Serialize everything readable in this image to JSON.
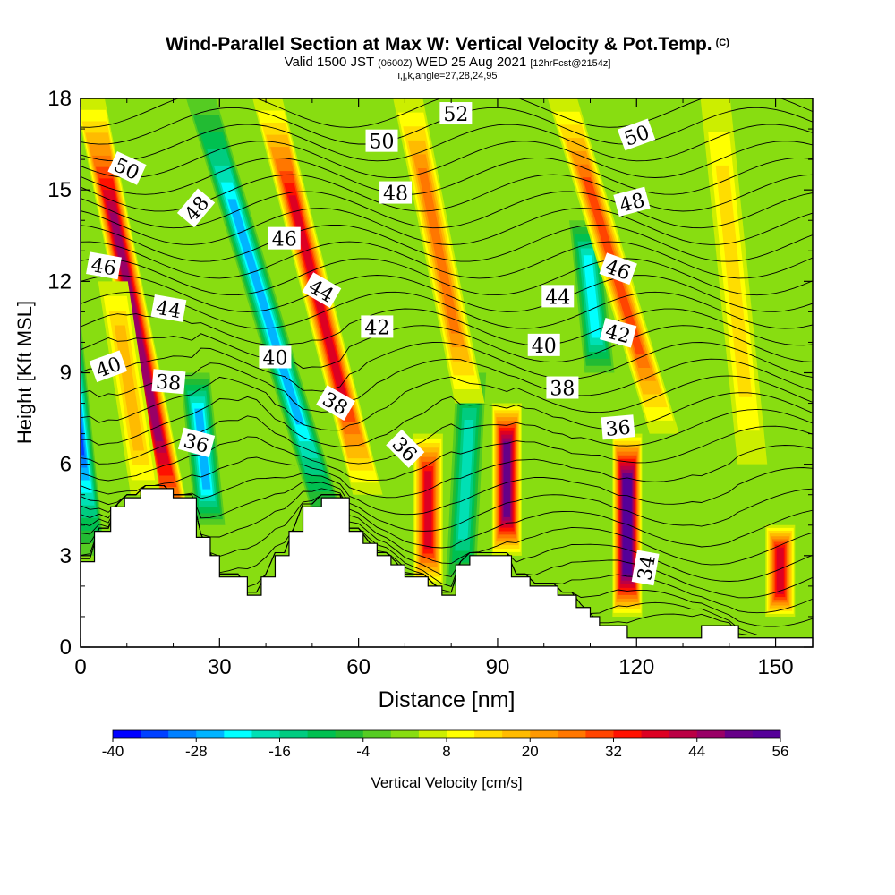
{
  "chart_data": {
    "type": "heatmap",
    "title": "Wind-Parallel Section at Max W: Vertical Velocity & Pot.Temp.",
    "title_mark": "(C)",
    "subtitle": {
      "valid": "Valid 1500 JST",
      "utc": "(0600Z)",
      "date": "WED 25 Aug 2021",
      "fcst": "[12hrFcst@2154z]"
    },
    "params_line": "i,j,k,angle=27,28,24,95",
    "xlabel": "Distance [nm]",
    "ylabel": "Height [Kft MSL]",
    "xlim": [
      0,
      158
    ],
    "ylim": [
      0,
      18
    ],
    "x_ticks": [
      "0",
      "30",
      "60",
      "90",
      "120",
      "150"
    ],
    "y_ticks": [
      "0",
      "3",
      "6",
      "9",
      "12",
      "15",
      "18"
    ],
    "colorbar": {
      "label": "Vertical Velocity [cm/s]",
      "min": -40,
      "max": 56,
      "step": 4,
      "tick_labels": [
        "-40",
        "-28",
        "-16",
        "-4",
        "8",
        "20",
        "32",
        "44",
        "56"
      ],
      "colors": [
        "#0000ff",
        "#0040ff",
        "#0080ff",
        "#00b4ff",
        "#00ffff",
        "#00e0b4",
        "#00cc80",
        "#00c050",
        "#22bb33",
        "#55cc22",
        "#88dd11",
        "#ccee00",
        "#ffff00",
        "#ffdd00",
        "#ffbb00",
        "#ff9900",
        "#ff7700",
        "#ff4400",
        "#ff1100",
        "#dd0022",
        "#bb0044",
        "#990066",
        "#660088",
        "#550099"
      ]
    },
    "velocity_features": [
      {
        "x": 2,
        "z_bottom": 3,
        "z_top": 18,
        "tilt": -1.0,
        "value": -40
      },
      {
        "x": 22,
        "z_bottom": 3,
        "z_top": 18,
        "tilt": -2.0,
        "value": 44
      },
      {
        "x": 14,
        "z_bottom": 5,
        "z_top": 12,
        "tilt": -1.5,
        "value": 16
      },
      {
        "x": 28,
        "z_bottom": 4,
        "z_top": 9,
        "tilt": -1.0,
        "value": -28
      },
      {
        "x": 54,
        "z_bottom": 4,
        "z_top": 18,
        "tilt": -3.0,
        "value": -28
      },
      {
        "x": 62,
        "z_bottom": 5,
        "z_top": 18,
        "tilt": -2.5,
        "value": 36
      },
      {
        "x": 75,
        "z_bottom": 2,
        "z_top": 7,
        "tilt": 0.0,
        "value": 36
      },
      {
        "x": 82,
        "z_bottom": 2,
        "z_top": 9,
        "tilt": 0.5,
        "value": -20
      },
      {
        "x": 92,
        "z_bottom": 3,
        "z_top": 8,
        "tilt": 0.0,
        "value": 48
      },
      {
        "x": 84,
        "z_bottom": 8,
        "z_top": 18,
        "tilt": -2.0,
        "value": 24
      },
      {
        "x": 118,
        "z_bottom": 1,
        "z_top": 7,
        "tilt": 0.0,
        "value": 56
      },
      {
        "x": 112,
        "z_bottom": 9,
        "z_top": 14,
        "tilt": -1.0,
        "value": -24
      },
      {
        "x": 126,
        "z_bottom": 7,
        "z_top": 18,
        "tilt": -3.0,
        "value": 28
      },
      {
        "x": 145,
        "z_bottom": 6,
        "z_top": 18,
        "tilt": -1.0,
        "value": 12
      },
      {
        "x": 151,
        "z_bottom": 1,
        "z_top": 4,
        "tilt": 0.0,
        "value": 36
      }
    ],
    "isentropes_K": [
      {
        "value": 34,
        "z": 4.2
      },
      {
        "value": 36,
        "z": 6.6
      },
      {
        "value": 38,
        "z": 8.2
      },
      {
        "value": 40,
        "z": 9.4
      },
      {
        "value": 42,
        "z": 10.5
      },
      {
        "value": 44,
        "z": 11.4
      },
      {
        "value": 46,
        "z": 12.8
      },
      {
        "value": 48,
        "z": 14.8
      },
      {
        "value": 50,
        "z": 16.8
      },
      {
        "value": 52,
        "z": 17.6
      }
    ],
    "contour_labels": [
      {
        "text": "50",
        "x": 10,
        "z": 15.7,
        "angle": 25
      },
      {
        "text": "48",
        "x": 25,
        "z": 14.4,
        "angle": -50
      },
      {
        "text": "46",
        "x": 5,
        "z": 12.5,
        "angle": 10
      },
      {
        "text": "44",
        "x": 19,
        "z": 11.1,
        "angle": 10
      },
      {
        "text": "40",
        "x": 6,
        "z": 9.2,
        "angle": -20
      },
      {
        "text": "38",
        "x": 19,
        "z": 8.7,
        "angle": 5
      },
      {
        "text": "36",
        "x": 25,
        "z": 6.7,
        "angle": 15
      },
      {
        "text": "46",
        "x": 44,
        "z": 13.4,
        "angle": 0
      },
      {
        "text": "40",
        "x": 42,
        "z": 9.5,
        "angle": 0
      },
      {
        "text": "44",
        "x": 52,
        "z": 11.7,
        "angle": 30
      },
      {
        "text": "38",
        "x": 55,
        "z": 8.0,
        "angle": 30
      },
      {
        "text": "50",
        "x": 65,
        "z": 16.6,
        "angle": 0
      },
      {
        "text": "48",
        "x": 68,
        "z": 14.9,
        "angle": 0
      },
      {
        "text": "42",
        "x": 64,
        "z": 10.5,
        "angle": 0
      },
      {
        "text": "36",
        "x": 70,
        "z": 6.5,
        "angle": 45
      },
      {
        "text": "52",
        "x": 81,
        "z": 17.5,
        "angle": 0
      },
      {
        "text": "44",
        "x": 103,
        "z": 11.5,
        "angle": 0
      },
      {
        "text": "40",
        "x": 100,
        "z": 9.9,
        "angle": 0
      },
      {
        "text": "38",
        "x": 104,
        "z": 8.5,
        "angle": 0
      },
      {
        "text": "50",
        "x": 120,
        "z": 16.8,
        "angle": -20
      },
      {
        "text": "48",
        "x": 119,
        "z": 14.6,
        "angle": -15
      },
      {
        "text": "46",
        "x": 116,
        "z": 12.4,
        "angle": 20
      },
      {
        "text": "42",
        "x": 116,
        "z": 10.3,
        "angle": 15
      },
      {
        "text": "36",
        "x": 116,
        "z": 7.2,
        "angle": -5
      },
      {
        "text": "34",
        "x": 122,
        "z": 2.6,
        "angle": -80
      }
    ],
    "terrain_profile_nm_kft": [
      [
        0,
        2.2
      ],
      [
        0,
        2.8
      ],
      [
        3,
        2.8
      ],
      [
        3,
        3.8
      ],
      [
        6.5,
        3.8
      ],
      [
        6.5,
        4.6
      ],
      [
        9.5,
        4.6
      ],
      [
        9.5,
        4.9
      ],
      [
        13,
        4.9
      ],
      [
        13,
        5.2
      ],
      [
        20,
        5.2
      ],
      [
        20,
        4.9
      ],
      [
        25,
        4.9
      ],
      [
        25,
        3.6
      ],
      [
        28,
        3.6
      ],
      [
        28,
        3.0
      ],
      [
        30,
        3.0
      ],
      [
        30,
        2.3
      ],
      [
        33,
        2.3
      ],
      [
        36,
        2.3
      ],
      [
        36,
        1.7
      ],
      [
        39,
        1.7
      ],
      [
        39,
        2.3
      ],
      [
        42,
        2.3
      ],
      [
        42,
        3.0
      ],
      [
        45,
        3.0
      ],
      [
        45,
        3.8
      ],
      [
        48,
        3.8
      ],
      [
        48,
        4.6
      ],
      [
        52,
        4.6
      ],
      [
        52,
        4.9
      ],
      [
        58,
        4.9
      ],
      [
        58,
        3.8
      ],
      [
        61,
        3.8
      ],
      [
        61,
        3.4
      ],
      [
        64,
        3.4
      ],
      [
        64,
        3.0
      ],
      [
        67,
        3.0
      ],
      [
        67,
        2.7
      ],
      [
        70,
        2.7
      ],
      [
        70,
        2.3
      ],
      [
        75,
        2.3
      ],
      [
        75,
        2.0
      ],
      [
        78,
        2.0
      ],
      [
        78,
        1.7
      ],
      [
        81,
        1.7
      ],
      [
        81,
        2.7
      ],
      [
        84,
        2.7
      ],
      [
        84,
        3.0
      ],
      [
        93,
        3.0
      ],
      [
        93,
        2.3
      ],
      [
        97,
        2.3
      ],
      [
        97,
        2.0
      ],
      [
        103,
        2.0
      ],
      [
        103,
        1.7
      ],
      [
        107,
        1.7
      ],
      [
        107,
        1.3
      ],
      [
        110,
        1.3
      ],
      [
        110,
        1.0
      ],
      [
        112,
        1.0
      ],
      [
        112,
        0.7
      ],
      [
        118,
        0.7
      ],
      [
        118,
        0.3
      ],
      [
        134,
        0.3
      ],
      [
        134,
        0.7
      ],
      [
        142,
        0.7
      ],
      [
        142,
        0.3
      ],
      [
        158,
        0.3
      ]
    ]
  }
}
